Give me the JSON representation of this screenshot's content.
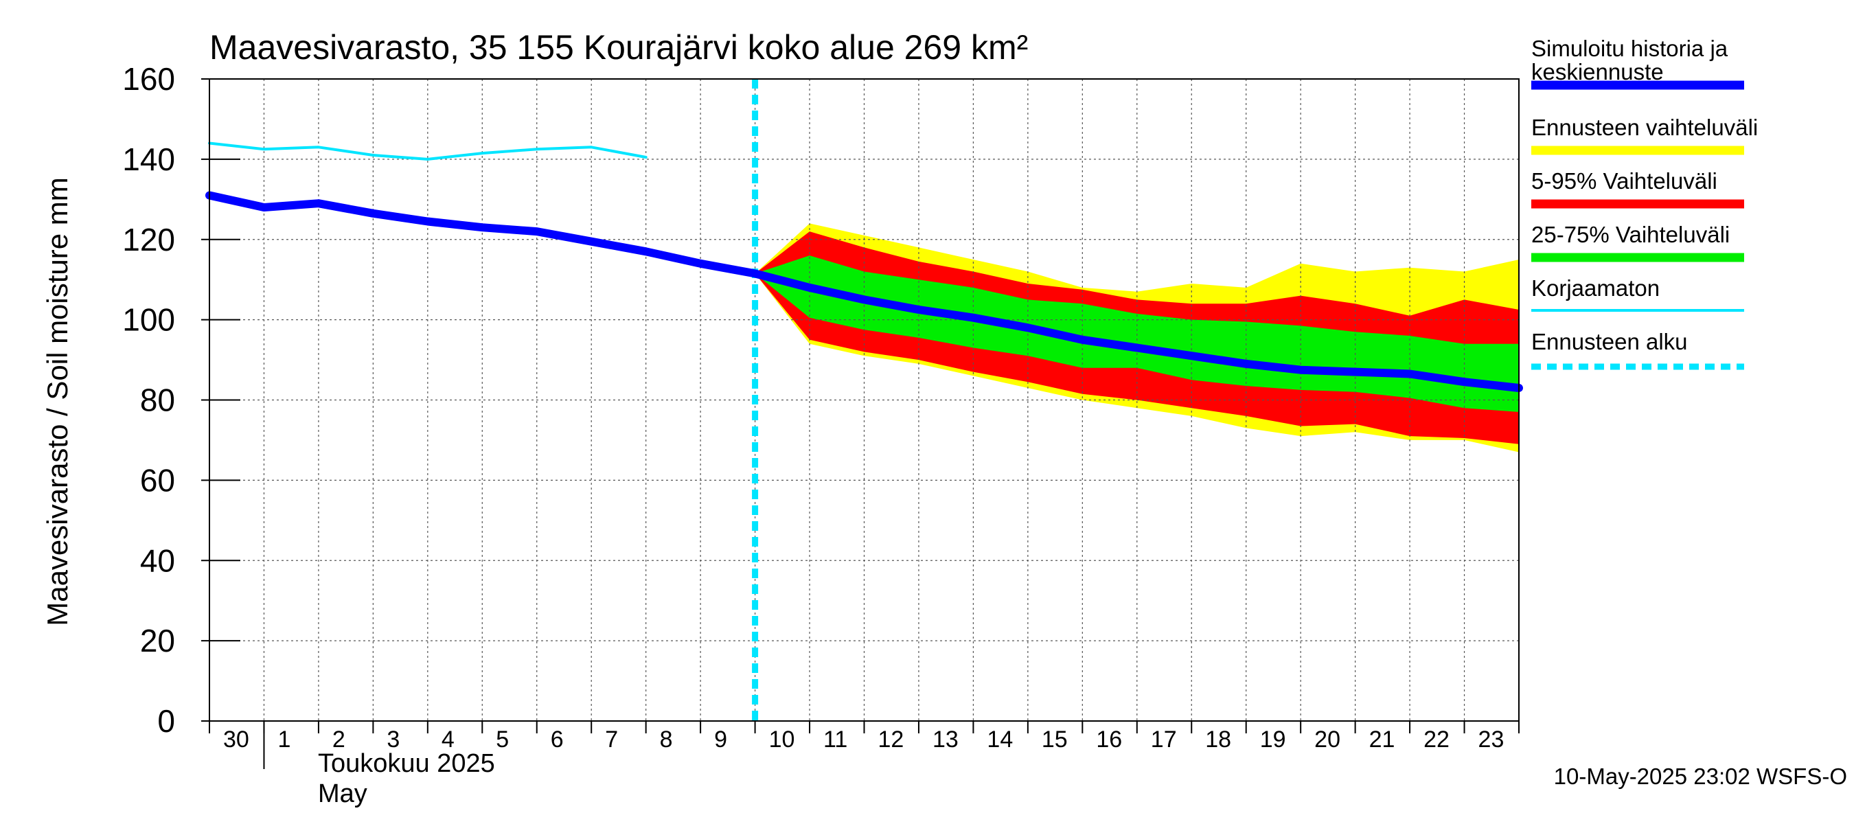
{
  "chart_data": {
    "type": "line",
    "title": "Maavesivarasto, 35 155 Kourajärvi koko alue 269 km²",
    "ylabel": "Maavesivarasto / Soil moisture   mm",
    "ylim": [
      0,
      160
    ],
    "yticks": [
      0,
      20,
      40,
      60,
      80,
      100,
      120,
      140,
      160
    ],
    "x_tick_labels": [
      "30",
      "1",
      "2",
      "3",
      "4",
      "5",
      "6",
      "7",
      "8",
      "9",
      "10",
      "11",
      "12",
      "13",
      "14",
      "15",
      "16",
      "17",
      "18",
      "19",
      "20",
      "21",
      "22",
      "23"
    ],
    "x_start": "2025-04-30",
    "x_end": "2025-05-24",
    "month_label_fi": "Toukokuu  2025",
    "month_label_en": "May",
    "forecast_start": "2025-05-10",
    "grid": true,
    "legend_position": "right",
    "timestamp": "10-May-2025 23:02 WSFS-O",
    "legend": [
      {
        "label": "Simuloitu historia ja keskiennuste",
        "color": "#0000ff",
        "style": "thick"
      },
      {
        "label": "Ennusteen vaihteluväli",
        "color": "#ffff00",
        "style": "thick"
      },
      {
        "label": "5-95% Vaihteluväli",
        "color": "#ff0000",
        "style": "thick"
      },
      {
        "label": "25-75% Vaihteluväli",
        "color": "#00ee00",
        "style": "thick"
      },
      {
        "label": "Korjaamaton",
        "color": "#00e5ff",
        "style": "thin"
      },
      {
        "label": "Ennusteen alku",
        "color": "#00e5ff",
        "style": "dashed"
      }
    ],
    "series": [
      {
        "name": "Simuloitu historia ja keskiennuste",
        "color": "#0000ff",
        "x": [
          "2025-04-30",
          "2025-05-01",
          "2025-05-02",
          "2025-05-03",
          "2025-05-04",
          "2025-05-05",
          "2025-05-06",
          "2025-05-07",
          "2025-05-08",
          "2025-05-09",
          "2025-05-10",
          "2025-05-11",
          "2025-05-12",
          "2025-05-13",
          "2025-05-14",
          "2025-05-15",
          "2025-05-16",
          "2025-05-17",
          "2025-05-18",
          "2025-05-19",
          "2025-05-20",
          "2025-05-21",
          "2025-05-22",
          "2025-05-23",
          "2025-05-24"
        ],
        "values": [
          131,
          128,
          129,
          126.5,
          124.5,
          123,
          122,
          119.5,
          117,
          114,
          111.5,
          108,
          105,
          102.5,
          100.5,
          98,
          95,
          93,
          91,
          89,
          87.5,
          87,
          86.5,
          84.5,
          83
        ]
      },
      {
        "name": "Korjaamaton",
        "color": "#00e5ff",
        "x": [
          "2025-04-30",
          "2025-05-01",
          "2025-05-02",
          "2025-05-03",
          "2025-05-04",
          "2025-05-05",
          "2025-05-06",
          "2025-05-07",
          "2025-05-08"
        ],
        "values": [
          144,
          142.5,
          143,
          141,
          140,
          141.5,
          142.5,
          143,
          140.5
        ]
      }
    ],
    "bands": [
      {
        "name": "Ennusteen vaihteluväli",
        "color": "#ffff00",
        "x": [
          "2025-05-10",
          "2025-05-11",
          "2025-05-12",
          "2025-05-13",
          "2025-05-14",
          "2025-05-15",
          "2025-05-16",
          "2025-05-17",
          "2025-05-18",
          "2025-05-19",
          "2025-05-20",
          "2025-05-21",
          "2025-05-22",
          "2025-05-23",
          "2025-05-24"
        ],
        "upper": [
          111.5,
          124,
          121,
          118,
          115,
          112,
          108,
          107,
          109,
          108,
          114,
          112,
          113,
          112,
          115
        ],
        "lower": [
          111.5,
          94,
          91,
          89,
          86,
          83,
          80,
          78,
          76,
          73,
          71,
          72,
          70,
          70,
          67
        ]
      },
      {
        "name": "5-95% Vaihteluväli",
        "color": "#ff0000",
        "x": [
          "2025-05-10",
          "2025-05-11",
          "2025-05-12",
          "2025-05-13",
          "2025-05-14",
          "2025-05-15",
          "2025-05-16",
          "2025-05-17",
          "2025-05-18",
          "2025-05-19",
          "2025-05-20",
          "2025-05-21",
          "2025-05-22",
          "2025-05-23",
          "2025-05-24"
        ],
        "upper": [
          111.5,
          122,
          118,
          114.5,
          112,
          109,
          107.5,
          105,
          104,
          104,
          106,
          104,
          101,
          105,
          102.5
        ],
        "lower": [
          111.5,
          95,
          92,
          90,
          87,
          84.5,
          81.5,
          80,
          78,
          76,
          73.5,
          74,
          71,
          70.5,
          69
        ]
      },
      {
        "name": "25-75% Vaihteluväli",
        "color": "#00ee00",
        "x": [
          "2025-05-10",
          "2025-05-11",
          "2025-05-12",
          "2025-05-13",
          "2025-05-14",
          "2025-05-15",
          "2025-05-16",
          "2025-05-17",
          "2025-05-18",
          "2025-05-19",
          "2025-05-20",
          "2025-05-21",
          "2025-05-22",
          "2025-05-23",
          "2025-05-24"
        ],
        "upper": [
          111.5,
          116,
          112,
          110,
          108,
          105,
          104,
          101.5,
          100,
          99.5,
          98.5,
          97,
          96,
          94,
          94
        ],
        "lower": [
          111.5,
          100.5,
          97.5,
          95.5,
          93,
          91,
          88,
          88,
          85,
          83.5,
          82.5,
          82,
          80.5,
          78,
          77
        ]
      }
    ]
  }
}
